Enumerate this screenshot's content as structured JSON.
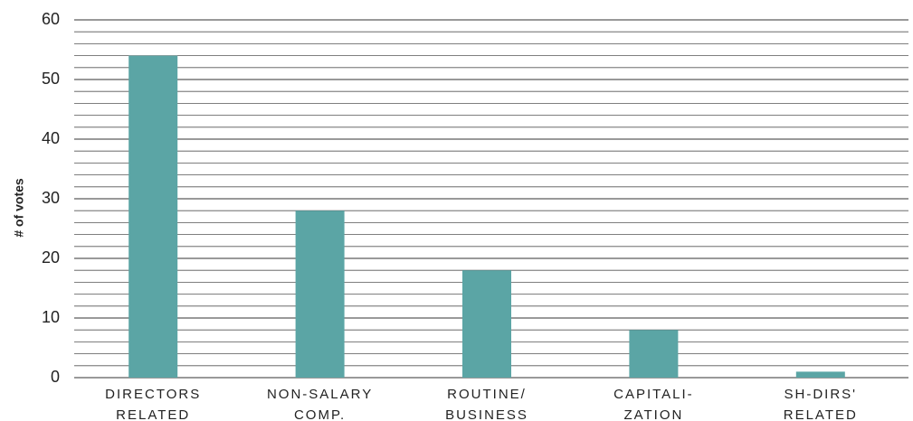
{
  "chart_data": {
    "type": "bar",
    "ylabel": "# of votes",
    "categories": [
      "DIRECTORS\nRELATED",
      "NON-SALARY\nCOMP.",
      "ROUTINE/\nBUSINESS",
      "CAPITALI-\nZATION",
      "SH-DIRS'\nRELATED"
    ],
    "values": [
      54,
      28,
      18,
      8,
      1
    ],
    "color": "#5ba5a5",
    "ylim": [
      0,
      60
    ],
    "yticks": [
      0,
      10,
      20,
      30,
      40,
      50,
      60
    ],
    "grid": true
  }
}
